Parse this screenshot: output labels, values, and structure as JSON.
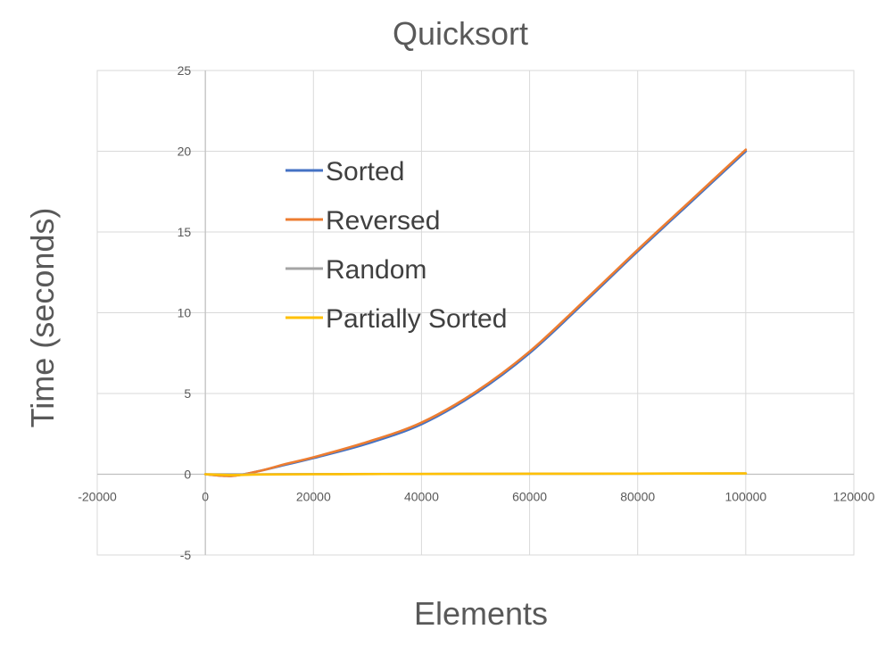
{
  "chart_data": {
    "type": "line",
    "title": "Quicksort",
    "xlabel": "Elements",
    "ylabel": "Time (seconds)",
    "xlim": [
      -20000,
      120000
    ],
    "ylim": [
      -5,
      25
    ],
    "xticks": [
      -20000,
      0,
      20000,
      40000,
      60000,
      80000,
      100000,
      120000
    ],
    "yticks": [
      -5,
      0,
      5,
      10,
      15,
      20,
      25
    ],
    "xtick_labels": [
      "-20000",
      "0",
      "20000",
      "40000",
      "60000",
      "80000",
      "100000",
      "120000"
    ],
    "ytick_labels": [
      "-5",
      "0",
      "5",
      "10",
      "15",
      "20",
      "25"
    ],
    "grid": true,
    "legend_position": "upper-left inside plot",
    "series": [
      {
        "name": "Sorted",
        "color": "#4472C4",
        "x": [
          0,
          5000,
          10000,
          15000,
          20000,
          30000,
          40000,
          50000,
          60000,
          70000,
          80000,
          90000,
          100000
        ],
        "y": [
          0,
          -0.1,
          0.2,
          0.6,
          1.0,
          1.9,
          3.1,
          5.0,
          7.5,
          10.6,
          13.8,
          16.9,
          20.0
        ]
      },
      {
        "name": "Reversed",
        "color": "#ED7D31",
        "x": [
          0,
          5000,
          10000,
          15000,
          20000,
          30000,
          40000,
          50000,
          60000,
          70000,
          80000,
          90000,
          100000
        ],
        "y": [
          0,
          -0.1,
          0.2,
          0.65,
          1.05,
          2.0,
          3.2,
          5.1,
          7.6,
          10.7,
          13.9,
          17.0,
          20.1
        ]
      },
      {
        "name": "Random",
        "color": "#A5A5A5",
        "x": [
          0,
          10000,
          20000,
          40000,
          60000,
          80000,
          100000
        ],
        "y": [
          0,
          0,
          0.01,
          0.02,
          0.03,
          0.04,
          0.05
        ]
      },
      {
        "name": "Partially Sorted",
        "color": "#FFC000",
        "x": [
          0,
          5000,
          10000,
          20000,
          40000,
          60000,
          80000,
          100000
        ],
        "y": [
          0,
          -0.05,
          -0.02,
          0,
          0.02,
          0.03,
          0.04,
          0.05
        ]
      }
    ]
  }
}
